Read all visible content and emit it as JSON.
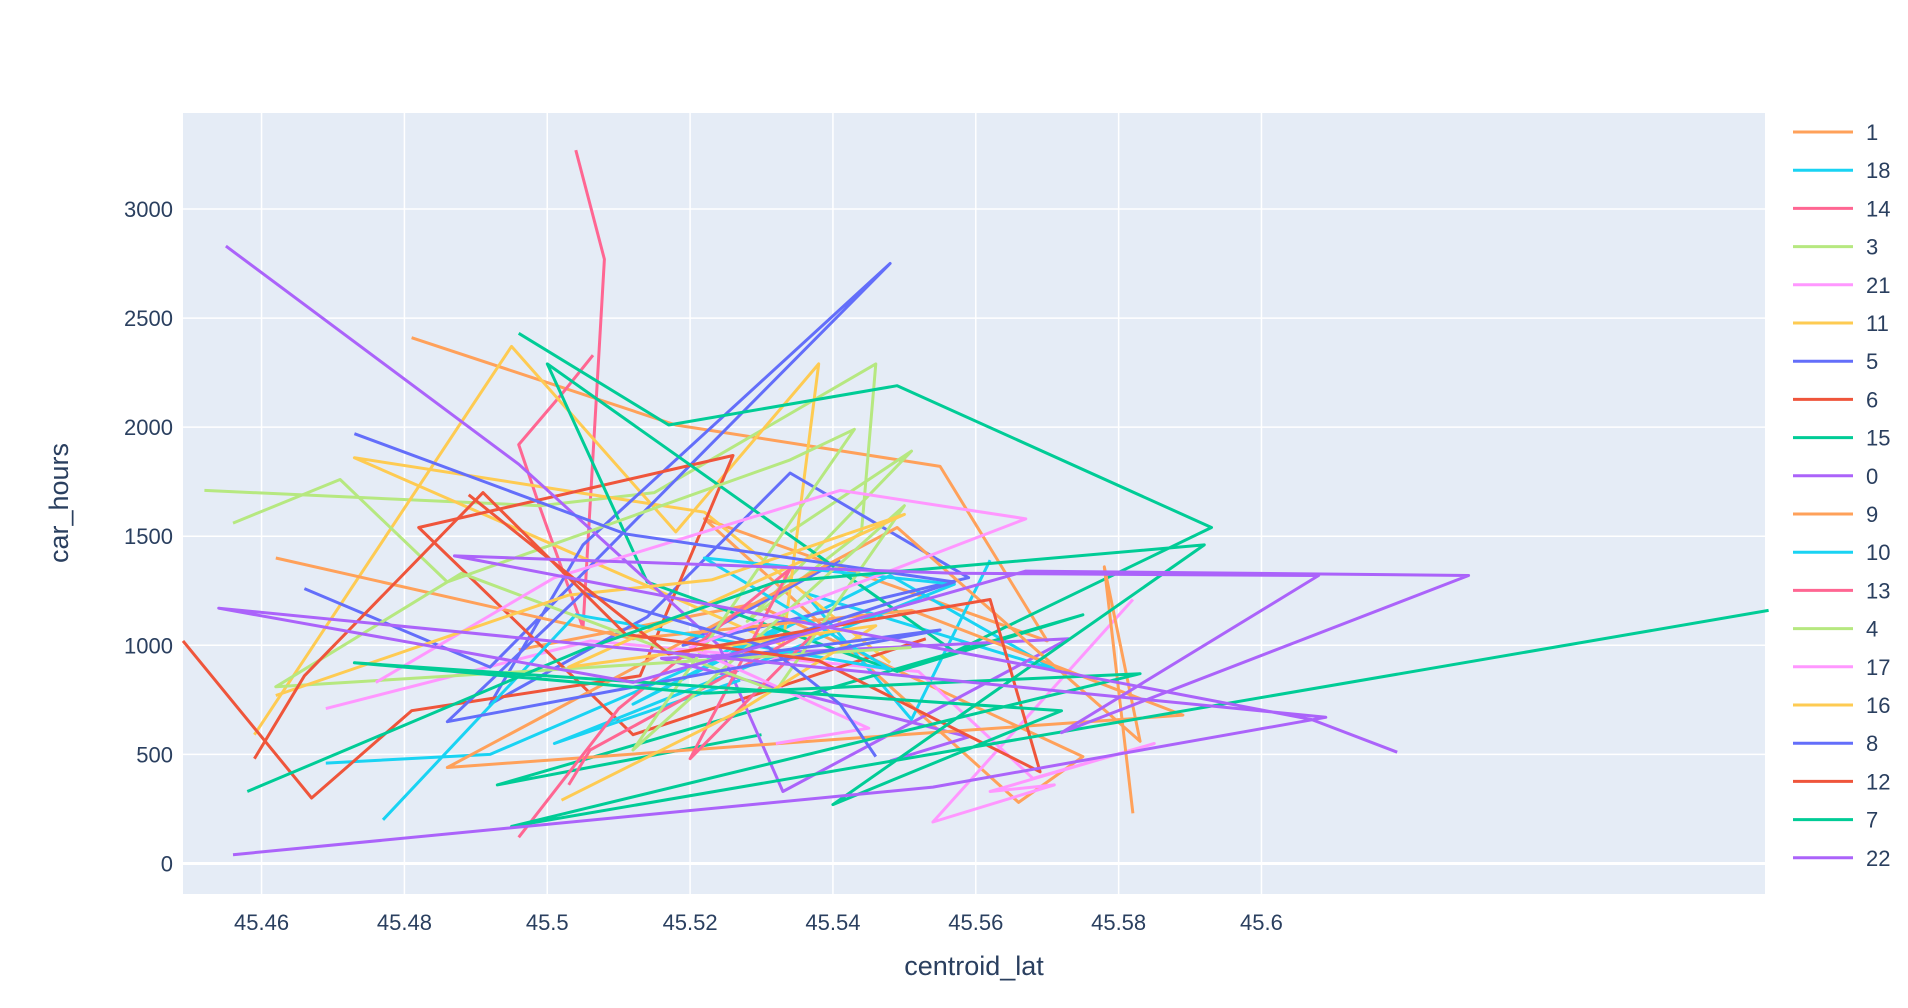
{
  "chart_data": {
    "type": "line",
    "xlabel": "centroid_lat",
    "ylabel": "car_hours",
    "xlim": [
      45.449,
      45.6705
    ],
    "ylim": [
      -140,
      3440
    ],
    "xticks": [
      45.46,
      45.48,
      45.5,
      45.52,
      45.54,
      45.56,
      45.58,
      45.6
    ],
    "xtick_labels": [
      "45.46",
      "45.48",
      "45.5",
      "45.52",
      "45.54",
      "45.56",
      "45.58",
      "45.6"
    ],
    "yticks": [
      0,
      500,
      1000,
      1500,
      2000,
      2500,
      3000
    ],
    "ytick_labels": [
      "0",
      "500",
      "1000",
      "1500",
      "2000",
      "2500",
      "3000"
    ],
    "grid": true,
    "legend_position": "right",
    "series": [
      {
        "name": "1",
        "color": "#FFA15A",
        "x": [
          45.481,
          45.518,
          45.555,
          45.57,
          45.522,
          45.566,
          45.575,
          45.529,
          45.496
        ],
        "y": [
          2410,
          2010,
          1820,
          1020,
          1580,
          280,
          490,
          1190,
          980
        ]
      },
      {
        "name": "18",
        "color": "#19D3F3",
        "x": [
          45.469,
          45.492,
          45.514,
          45.533,
          45.512,
          45.548,
          45.571,
          45.536,
          45.551,
          45.562
        ],
        "y": [
          460,
          500,
          810,
          1090,
          730,
          1320,
          890,
          1240,
          660,
          1390
        ]
      },
      {
        "name": "14",
        "color": "#FF6692",
        "x": [
          45.504,
          45.508,
          45.505,
          45.499,
          45.496,
          45.502,
          45.5064
        ],
        "y": [
          3270,
          2770,
          1080,
          1630,
          1920,
          2150,
          2330
        ]
      },
      {
        "name": "3",
        "color": "#B6E880",
        "x": [
          45.452,
          45.499,
          45.515,
          45.546,
          45.544,
          45.528,
          45.551,
          45.534
        ],
        "y": [
          1710,
          1640,
          1700,
          2290,
          1520,
          1110,
          1890,
          1520
        ]
      },
      {
        "name": "21",
        "color": "#FF97FF",
        "x": [
          45.469,
          45.506,
          45.552,
          45.568,
          45.585,
          45.562,
          45.571,
          45.554,
          45.582
        ],
        "y": [
          710,
          1020,
          880,
          390,
          550,
          330,
          360,
          190,
          1210
        ]
      },
      {
        "name": "11",
        "color": "#FECB52",
        "x": [
          45.459,
          45.495,
          45.518,
          45.538,
          45.533,
          45.473,
          45.522,
          45.548
        ],
        "y": [
          590,
          2370,
          1520,
          2290,
          1000,
          1860,
          1610,
          920
        ]
      },
      {
        "name": "5",
        "color": "#636EFA",
        "x": [
          45.466,
          45.492,
          45.548,
          45.505,
          45.492,
          45.514,
          45.534,
          45.559,
          45.519,
          45.541
        ],
        "y": [
          1260,
          900,
          2750,
          1460,
          730,
          1130,
          1790,
          1310,
          1000,
          1390
        ]
      },
      {
        "name": "6",
        "color": "#EF553B",
        "x": [
          45.449,
          45.467,
          45.481,
          45.513,
          45.526,
          45.482,
          45.512,
          45.553
        ],
        "y": [
          1020,
          300,
          700,
          860,
          1870,
          1540,
          590,
          1030
        ]
      },
      {
        "name": "15",
        "color": "#00CC96",
        "x": [
          45.496,
          45.517,
          45.549,
          45.593,
          45.557,
          45.5,
          45.514,
          45.549,
          45.575,
          45.493,
          45.53
        ],
        "y": [
          2430,
          2010,
          2190,
          1540,
          970,
          2290,
          1290,
          880,
          1140,
          360,
          590
        ]
      },
      {
        "name": "0",
        "color": "#AB63FA",
        "x": [
          45.455,
          45.496,
          45.524,
          45.533,
          45.573,
          45.516,
          45.559,
          45.548
        ],
        "y": [
          2830,
          1830,
          1000,
          330,
          1030,
          940,
          580,
          470
        ]
      },
      {
        "name": "9",
        "color": "#FFA15A",
        "x": [
          45.462,
          45.512,
          45.551,
          45.589,
          45.541,
          45.486,
          45.549,
          45.583,
          45.578,
          45.582
        ],
        "y": [
          1400,
          1030,
          1160,
          680,
          570,
          440,
          1540,
          560,
          1360,
          230
        ]
      },
      {
        "name": "10",
        "color": "#19D3F3",
        "x": [
          45.477,
          45.504,
          45.548,
          45.522,
          45.557,
          45.501,
          45.527
        ],
        "y": [
          200,
          1140,
          890,
          1400,
          1280,
          550,
          840
        ]
      },
      {
        "name": "13",
        "color": "#FF6692",
        "x": [
          45.496,
          45.51,
          45.534,
          45.52,
          45.539,
          45.506,
          45.503
        ],
        "y": [
          120,
          710,
          1350,
          480,
          1110,
          520,
          360
        ]
      },
      {
        "name": "4",
        "color": "#B6E880",
        "x": [
          45.456,
          45.471,
          45.486,
          45.534,
          45.543,
          45.512,
          45.55,
          45.532,
          45.488,
          45.462,
          45.551
        ],
        "y": [
          1560,
          1760,
          1290,
          1850,
          1990,
          520,
          1640,
          790,
          1330,
          810,
          990
        ]
      },
      {
        "name": "17",
        "color": "#FF97FF",
        "x": [
          45.476,
          45.501,
          45.541,
          45.567,
          45.52,
          45.545,
          45.532
        ],
        "y": [
          830,
          1310,
          1710,
          1580,
          990,
          620,
          550
        ]
      },
      {
        "name": "16",
        "color": "#FECB52",
        "x": [
          45.462,
          45.503,
          45.523,
          45.55,
          45.503,
          45.546,
          45.527,
          45.502
        ],
        "y": [
          770,
          1230,
          1300,
          1600,
          900,
          1090,
          700,
          290
        ]
      },
      {
        "name": "8",
        "color": "#636EFA",
        "x": [
          45.473,
          45.511,
          45.557,
          45.524,
          45.555,
          45.486,
          45.505,
          45.531,
          45.541,
          45.546
        ],
        "y": [
          1970,
          1510,
          1290,
          940,
          1070,
          650,
          1240,
          990,
          730,
          490
        ]
      },
      {
        "name": "12",
        "color": "#EF553B",
        "x": [
          45.459,
          45.466,
          45.491,
          45.511,
          45.538,
          45.569,
          45.562,
          45.517,
          45.489
        ],
        "y": [
          480,
          860,
          1700,
          1050,
          930,
          420,
          1210,
          960,
          1690
        ]
      },
      {
        "name": "7",
        "color": "#00CC96",
        "x": [
          45.458,
          45.479,
          45.505,
          45.532,
          45.592,
          45.54,
          45.572,
          45.473,
          45.522,
          45.583,
          45.495,
          45.671
        ],
        "y": [
          330,
          620,
          980,
          1290,
          1460,
          270,
          700,
          920,
          780,
          870,
          170,
          1160
        ]
      },
      {
        "name": "22",
        "color": "#AB63FA",
        "x": [
          45.456,
          45.554,
          45.609,
          45.454,
          45.512,
          45.567,
          45.629,
          45.572,
          45.608,
          45.557,
          45.487,
          45.607,
          45.619
        ],
        "y": [
          40,
          350,
          670,
          1170,
          830,
          1340,
          1320,
          600,
          1320,
          1330,
          1410,
          660,
          510
        ]
      }
    ]
  }
}
